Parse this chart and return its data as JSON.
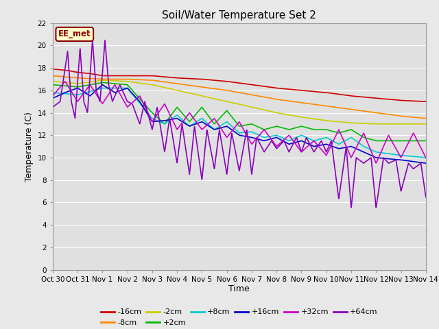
{
  "title": "Soil/Water Temperature Set 2",
  "xlabel": "Time",
  "ylabel": "Temperature (C)",
  "ylim": [
    0,
    22
  ],
  "yticks": [
    0,
    2,
    4,
    6,
    8,
    10,
    12,
    14,
    16,
    18,
    20,
    22
  ],
  "fig_bg": "#e8e8e8",
  "plot_bg": "#e0e0e0",
  "annotation_text": "EE_met",
  "annotation_bg": "#ffffcc",
  "annotation_border": "#8b0000",
  "series_order": [
    "-16cm",
    "-8cm",
    "-2cm",
    "+2cm",
    "+8cm",
    "+16cm",
    "+32cm",
    "+64cm"
  ],
  "series": {
    "-16cm": {
      "color": "#cc0000",
      "lw": 1.2
    },
    "-8cm": {
      "color": "#ff8800",
      "lw": 1.2
    },
    "-2cm": {
      "color": "#cccc00",
      "lw": 1.2
    },
    "+2cm": {
      "color": "#00bb00",
      "lw": 1.2
    },
    "+8cm": {
      "color": "#00cccc",
      "lw": 1.2
    },
    "+16cm": {
      "color": "#0000cc",
      "lw": 1.2
    },
    "+32cm": {
      "color": "#cc00cc",
      "lw": 1.2
    },
    "+64cm": {
      "color": "#8800bb",
      "lw": 1.2
    }
  },
  "x_tick_labels": [
    "Oct 30",
    "Oct 31",
    "Nov 1",
    "Nov 2",
    "Nov 3",
    "Nov 4",
    "Nov 5",
    "Nov 6",
    "Nov 7",
    "Nov 8",
    "Nov 9",
    "Nov 10",
    "Nov 11",
    "Nov 12",
    "Nov 13",
    "Nov 14"
  ],
  "legend_row1": [
    "-16cm",
    "-8cm",
    "-2cm",
    "+2cm",
    "+8cm",
    "+16cm"
  ],
  "legend_row2": [
    "+32cm",
    "+64cm"
  ]
}
